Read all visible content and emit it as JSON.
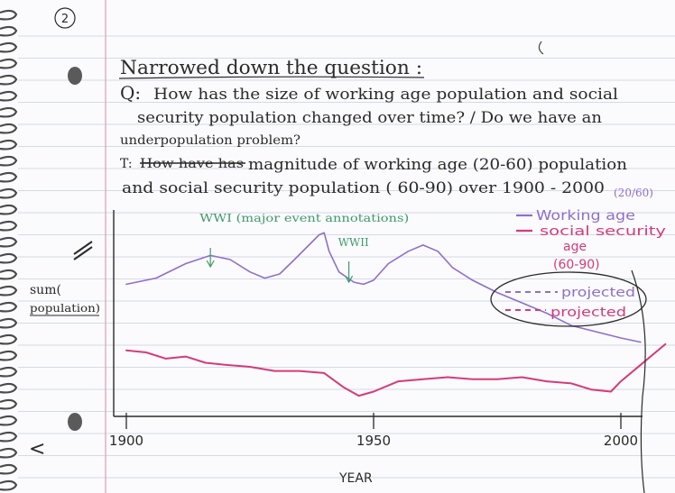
{
  "page_number": "2",
  "heading": "Narrowed down the question :",
  "question": {
    "prefix": "Q:",
    "line1": "How has the size of working age population and social",
    "line2": "security population changed over time? / Do we have an",
    "line3": "underpopulation problem?"
  },
  "task": {
    "prefix": "T:",
    "struck": "How have has",
    "line1_rest": "magnitude of working age (20-60) population",
    "line2": "and social security population ( 60-90) over 1900 - 2000"
  },
  "annotations": {
    "wwi": "WWI (major event annotations)",
    "wwii": "WWII",
    "working_age_range": "(20/60)"
  },
  "axis": {
    "ylabel_line1": "sum(",
    "ylabel_line2": "population)",
    "xlabel": "YEAR",
    "back_arrow": "<"
  },
  "legend": {
    "working_age": "Working age",
    "social_security_line1": "social security",
    "social_security_line2": "age",
    "social_security_line3": "(60-90)",
    "projected_1": "projected",
    "projected_2": "projected"
  },
  "colors": {
    "paper": "#fbfbfd",
    "rule_line": "#c9cfe0",
    "margin_line": "#e3a2b4",
    "ink": "#2a2a2a",
    "working_age": "#8e6fcc",
    "social_security": "#d63a7a",
    "annotation_green": "#3f9a6a"
  },
  "chart_data": {
    "type": "line",
    "x_ticks": [
      1900,
      1950,
      2000
    ],
    "xlim": [
      1900,
      2010
    ],
    "xlabel": "YEAR",
    "ylabel": "sum( population)",
    "series": [
      {
        "name": "Working age",
        "color": "#8e6fcc",
        "x": [
          1900,
          1906,
          1912,
          1917,
          1921,
          1925,
          1928,
          1931,
          1934,
          1939,
          1940,
          1941,
          1943,
          1946,
          1948,
          1950,
          1953,
          1957,
          1960,
          1963,
          1966,
          1970,
          1975,
          1980,
          1985,
          1990,
          1995,
          2000,
          2004
        ],
        "y": [
          0.64,
          0.67,
          0.74,
          0.78,
          0.76,
          0.7,
          0.67,
          0.69,
          0.76,
          0.88,
          0.89,
          0.8,
          0.7,
          0.65,
          0.64,
          0.66,
          0.74,
          0.8,
          0.83,
          0.8,
          0.72,
          0.66,
          0.6,
          0.55,
          0.5,
          0.44,
          0.41,
          0.38,
          0.36
        ]
      },
      {
        "name": "social security age (60-90)",
        "color": "#d63a7a",
        "x": [
          1900,
          1904,
          1908,
          1912,
          1916,
          1920,
          1925,
          1930,
          1935,
          1940,
          1944,
          1947,
          1950,
          1955,
          1960,
          1965,
          1970,
          1975,
          1980,
          1985,
          1990,
          1994,
          1998,
          2000,
          2004,
          2009
        ],
        "y": [
          0.32,
          0.31,
          0.28,
          0.29,
          0.26,
          0.25,
          0.24,
          0.22,
          0.22,
          0.21,
          0.14,
          0.1,
          0.12,
          0.17,
          0.18,
          0.19,
          0.18,
          0.18,
          0.19,
          0.17,
          0.16,
          0.13,
          0.12,
          0.17,
          0.25,
          0.35
        ]
      }
    ],
    "annotations": [
      {
        "label": "WWI (major event annotations)",
        "x": 1917
      },
      {
        "label": "WWII",
        "x": 1945
      }
    ]
  }
}
